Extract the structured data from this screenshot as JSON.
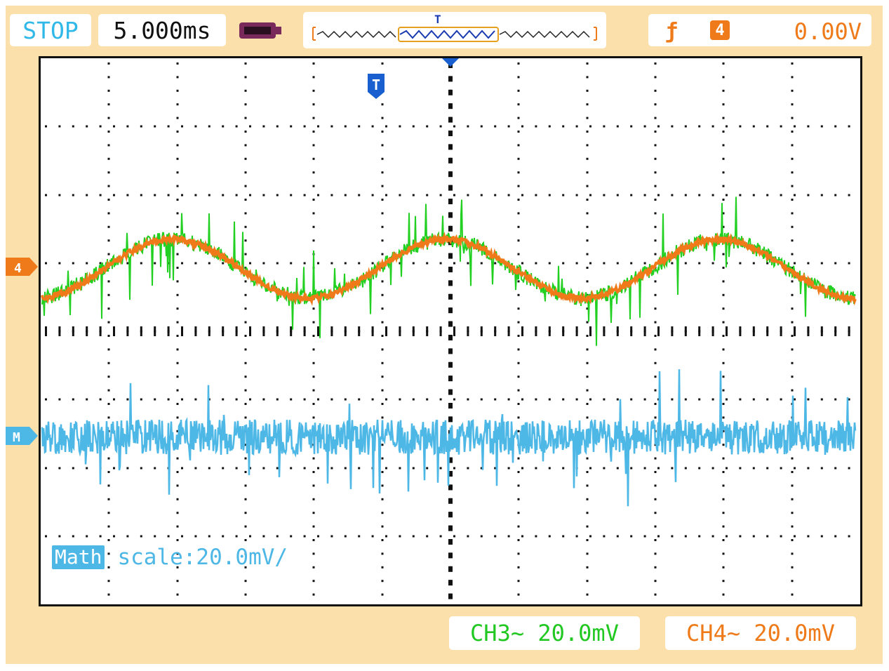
{
  "status": "STOP",
  "timebase": "5.000ms",
  "trigger": {
    "edge_icon": "rising-edge-icon",
    "source_badge": "4",
    "level": "0.00V",
    "marker_label": "T"
  },
  "channels": {
    "ch3": {
      "label": "CH3~ 20.0mV",
      "color": "#22c822"
    },
    "ch4": {
      "label": "CH4~ 20.0mV",
      "color": "#ef7a1a",
      "marker": "4"
    }
  },
  "math": {
    "tag": "Math",
    "scale_text": "scale:20.0mV/",
    "color": "#4db7e6",
    "marker": "M"
  },
  "colors": {
    "frame": "#fbe0ab",
    "grid": "#111111"
  }
}
